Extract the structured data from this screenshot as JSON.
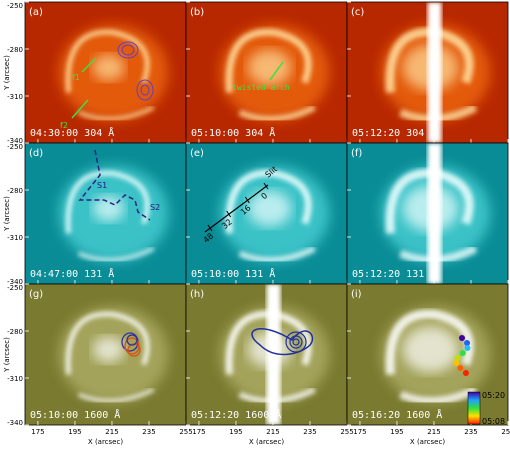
{
  "axes": {
    "y_label": "Y (arcsec)",
    "x_label": "X (arcsec)",
    "xlim": [
      168,
      255
    ],
    "xticks": [
      175,
      195,
      215,
      235,
      255
    ],
    "ylim": [
      -340,
      -250
    ],
    "yticks": [
      -250,
      -280,
      -310,
      -340
    ]
  },
  "panels": [
    {
      "label": "(a)",
      "caption": "04:30:00 304 Å"
    },
    {
      "label": "(b)",
      "caption": "05:10:00 304 Å"
    },
    {
      "label": "(c)",
      "caption": "05:12:20 304 Å"
    },
    {
      "label": "(d)",
      "caption": "04:47:00 131 Å"
    },
    {
      "label": "(e)",
      "caption": "05:10:00 131 Å"
    },
    {
      "label": "(f)",
      "caption": "05:12:20 131 Å"
    },
    {
      "label": "(g)",
      "caption": "05:10:00 1600 Å"
    },
    {
      "label": "(h)",
      "caption": "05:12:20 1600 Å"
    },
    {
      "label": "(i)",
      "caption": "05:16:20 1600 Å"
    }
  ],
  "annotations": {
    "f1": "f1",
    "f2": "f2",
    "twisted_arch": "twisted arch",
    "s1": "S1",
    "s2": "S2",
    "slit": "Slit",
    "slit_ticks": [
      "48",
      "32",
      "16",
      "0"
    ]
  },
  "colorbar": {
    "top": "05:20",
    "bottom": "05:08"
  }
}
